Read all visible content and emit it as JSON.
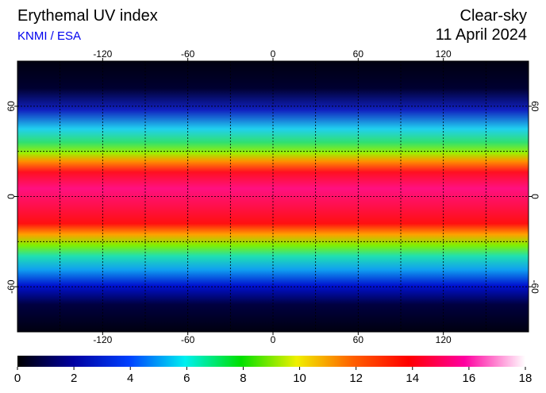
{
  "header": {
    "title": "Erythemal UV index",
    "credit": "KNMI / ESA",
    "mode": "Clear-sky",
    "date": "11 April 2024"
  },
  "map": {
    "xlim": [
      -180,
      180
    ],
    "ylim": [
      -90,
      90
    ],
    "xticks": [
      -120,
      -60,
      0,
      60,
      120
    ],
    "yticks": [
      -60,
      0,
      60
    ],
    "grid_lon": [
      -150,
      -120,
      -90,
      -60,
      -30,
      0,
      30,
      60,
      90,
      120,
      150
    ],
    "grid_lat": [
      -60,
      -30,
      0,
      30,
      60
    ]
  },
  "colorbar": {
    "lim": [
      0,
      18
    ],
    "ticks": [
      0,
      2,
      4,
      6,
      8,
      10,
      12,
      14,
      16,
      18
    ]
  }
}
